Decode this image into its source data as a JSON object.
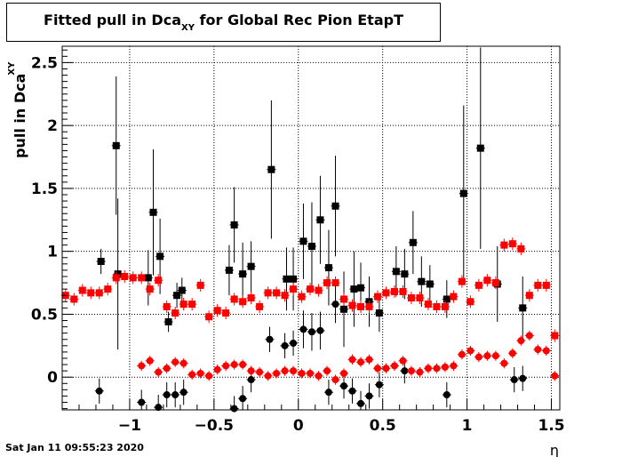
{
  "title": {
    "main": "Fitted pull in Dca",
    "sub": "XY",
    "rest": " for Global Rec Pion EtapT"
  },
  "footer": {
    "timestamp": "Sat Jan 11 09:55:23 2020"
  },
  "chart_data": {
    "type": "scatter",
    "title": "Fitted pull in Dca_XY for Global Rec Pion EtapT",
    "xlabel": "η",
    "ylabel_main": "pull in Dca",
    "ylabel_sub": "XY",
    "xlim": [
      -1.4,
      1.55
    ],
    "ylim": [
      -0.26,
      2.63
    ],
    "x_ticks": [
      -1,
      -0.5,
      0,
      0.5,
      1,
      1.5
    ],
    "x_tick_labels": [
      "−1",
      "−0.5",
      "0",
      "0.5",
      "1",
      "1.5"
    ],
    "y_ticks": [
      0,
      0.5,
      1,
      1.5,
      2,
      2.5
    ],
    "y_tick_labels": [
      "0",
      "0.5",
      "1",
      "1.5",
      "2",
      "2.5"
    ],
    "grid": true,
    "colors": {
      "black": "#000000",
      "red": "#ff0000"
    },
    "series": [
      {
        "marker": "square",
        "color": "#000000",
        "points": [
          [
            -1.17,
            0.92,
            0.1
          ],
          [
            -1.08,
            1.84,
            0.55
          ],
          [
            -1.07,
            0.82,
            0.6
          ],
          [
            -0.89,
            0.79,
            0.22
          ],
          [
            -0.86,
            1.31,
            0.5
          ],
          [
            -0.82,
            0.96,
            0.3
          ],
          [
            -0.77,
            0.44,
            0.08
          ],
          [
            -0.72,
            0.65,
            0.1
          ],
          [
            -0.69,
            0.69,
            0.1
          ],
          [
            -0.41,
            0.85,
            0.2
          ],
          [
            -0.38,
            1.21,
            0.3
          ],
          [
            -0.33,
            0.82,
            0.25
          ],
          [
            -0.28,
            0.88,
            0.2
          ],
          [
            -0.16,
            1.65,
            0.55
          ],
          [
            -0.07,
            0.78,
            0.25
          ],
          [
            -0.03,
            0.78,
            0.25
          ],
          [
            0.03,
            1.08,
            0.3
          ],
          [
            0.08,
            1.04,
            0.35
          ],
          [
            0.13,
            1.25,
            0.35
          ],
          [
            0.18,
            0.87,
            0.3
          ],
          [
            0.22,
            1.36,
            0.4
          ],
          [
            0.27,
            0.54,
            0.3
          ],
          [
            0.33,
            0.7,
            0.3
          ],
          [
            0.37,
            0.71,
            0.2
          ],
          [
            0.42,
            0.6,
            0.2
          ],
          [
            0.48,
            0.51,
            0.15
          ],
          [
            0.58,
            0.84,
            0.2
          ],
          [
            0.63,
            0.82,
            0.2
          ],
          [
            0.68,
            1.07,
            0.25
          ],
          [
            0.73,
            0.76,
            0.2
          ],
          [
            0.78,
            0.74,
            0.15
          ],
          [
            0.88,
            0.62,
            0.15
          ],
          [
            0.98,
            1.46,
            0.7
          ],
          [
            1.08,
            1.82,
            0.8
          ],
          [
            1.18,
            0.74,
            0.3
          ],
          [
            1.33,
            0.55,
            0.25
          ]
        ]
      },
      {
        "marker": "square",
        "color": "#ff0000",
        "points": [
          [
            -1.38,
            0.65,
            0.05
          ],
          [
            -1.33,
            0.62,
            0.05
          ],
          [
            -1.28,
            0.69,
            0.05
          ],
          [
            -1.23,
            0.67,
            0.05
          ],
          [
            -1.18,
            0.67,
            0.05
          ],
          [
            -1.13,
            0.7,
            0.05
          ],
          [
            -1.08,
            0.79,
            0.05
          ],
          [
            -1.03,
            0.8,
            0.05
          ],
          [
            -0.98,
            0.79,
            0.05
          ],
          [
            -0.93,
            0.79,
            0.05
          ],
          [
            -0.88,
            0.7,
            0.05
          ],
          [
            -0.83,
            0.77,
            0.05
          ],
          [
            -0.78,
            0.56,
            0.05
          ],
          [
            -0.73,
            0.51,
            0.05
          ],
          [
            -0.68,
            0.58,
            0.05
          ],
          [
            -0.63,
            0.58,
            0.05
          ],
          [
            -0.58,
            0.73,
            0.05
          ],
          [
            -0.53,
            0.48,
            0.05
          ],
          [
            -0.48,
            0.53,
            0.05
          ],
          [
            -0.43,
            0.51,
            0.05
          ],
          [
            -0.38,
            0.62,
            0.05
          ],
          [
            -0.33,
            0.6,
            0.05
          ],
          [
            -0.28,
            0.63,
            0.05
          ],
          [
            -0.23,
            0.56,
            0.05
          ],
          [
            -0.18,
            0.67,
            0.05
          ],
          [
            -0.13,
            0.67,
            0.05
          ],
          [
            -0.08,
            0.65,
            0.05
          ],
          [
            -0.03,
            0.7,
            0.05
          ],
          [
            0.02,
            0.64,
            0.05
          ],
          [
            0.07,
            0.7,
            0.05
          ],
          [
            0.12,
            0.69,
            0.05
          ],
          [
            0.17,
            0.75,
            0.05
          ],
          [
            0.22,
            0.75,
            0.05
          ],
          [
            0.27,
            0.62,
            0.05
          ],
          [
            0.32,
            0.57,
            0.05
          ],
          [
            0.37,
            0.56,
            0.05
          ],
          [
            0.42,
            0.56,
            0.05
          ],
          [
            0.47,
            0.64,
            0.05
          ],
          [
            0.52,
            0.67,
            0.05
          ],
          [
            0.57,
            0.68,
            0.05
          ],
          [
            0.62,
            0.68,
            0.05
          ],
          [
            0.67,
            0.63,
            0.05
          ],
          [
            0.72,
            0.63,
            0.05
          ],
          [
            0.77,
            0.58,
            0.05
          ],
          [
            0.82,
            0.56,
            0.05
          ],
          [
            0.87,
            0.56,
            0.05
          ],
          [
            0.92,
            0.64,
            0.05
          ],
          [
            0.97,
            0.76,
            0.05
          ],
          [
            1.02,
            0.6,
            0.05
          ],
          [
            1.07,
            0.73,
            0.05
          ],
          [
            1.12,
            0.77,
            0.05
          ],
          [
            1.17,
            0.75,
            0.05
          ],
          [
            1.22,
            1.05,
            0.05
          ],
          [
            1.27,
            1.06,
            0.05
          ],
          [
            1.32,
            1.02,
            0.05
          ],
          [
            1.37,
            0.65,
            0.05
          ],
          [
            1.42,
            0.73,
            0.05
          ],
          [
            1.47,
            0.73,
            0.05
          ],
          [
            1.52,
            0.33,
            0.05
          ]
        ]
      },
      {
        "marker": "circle",
        "color": "#000000",
        "points": [
          [
            -1.18,
            -0.11,
            0.1
          ],
          [
            -0.93,
            -0.2,
            0.1
          ],
          [
            -0.83,
            -0.24,
            0.1
          ],
          [
            -0.78,
            -0.14,
            0.1
          ],
          [
            -0.73,
            -0.14,
            0.1
          ],
          [
            -0.68,
            -0.12,
            0.1
          ],
          [
            -0.38,
            -0.25,
            0.1
          ],
          [
            -0.33,
            -0.17,
            0.1
          ],
          [
            -0.28,
            -0.02,
            0.1
          ],
          [
            -0.17,
            0.3,
            0.1
          ],
          [
            -0.08,
            0.25,
            0.1
          ],
          [
            -0.03,
            0.27,
            0.1
          ],
          [
            0.03,
            0.38,
            0.15
          ],
          [
            0.08,
            0.36,
            0.15
          ],
          [
            0.13,
            0.37,
            0.15
          ],
          [
            0.18,
            -0.12,
            0.1
          ],
          [
            0.22,
            0.58,
            0.15
          ],
          [
            0.27,
            -0.07,
            0.1
          ],
          [
            0.32,
            -0.11,
            0.1
          ],
          [
            0.37,
            -0.21,
            0.1
          ],
          [
            0.42,
            -0.15,
            0.1
          ],
          [
            0.48,
            -0.06,
            0.1
          ],
          [
            0.63,
            0.05,
            0.1
          ],
          [
            0.88,
            -0.14,
            0.1
          ],
          [
            1.28,
            -0.02,
            0.1
          ],
          [
            1.33,
            -0.01,
            0.1
          ]
        ]
      },
      {
        "marker": "circle",
        "color": "#ff0000",
        "points": [
          [
            -0.93,
            0.09,
            0.04
          ],
          [
            -0.88,
            0.13,
            0.04
          ],
          [
            -0.83,
            0.04,
            0.04
          ],
          [
            -0.78,
            0.07,
            0.04
          ],
          [
            -0.73,
            0.12,
            0.04
          ],
          [
            -0.68,
            0.11,
            0.04
          ],
          [
            -0.63,
            0.02,
            0.04
          ],
          [
            -0.58,
            0.03,
            0.04
          ],
          [
            -0.53,
            0.01,
            0.04
          ],
          [
            -0.48,
            0.06,
            0.04
          ],
          [
            -0.43,
            0.09,
            0.04
          ],
          [
            -0.38,
            0.1,
            0.04
          ],
          [
            -0.33,
            0.1,
            0.04
          ],
          [
            -0.28,
            0.05,
            0.04
          ],
          [
            -0.23,
            0.04,
            0.04
          ],
          [
            -0.18,
            0.01,
            0.04
          ],
          [
            -0.13,
            0.03,
            0.04
          ],
          [
            -0.08,
            0.05,
            0.04
          ],
          [
            -0.03,
            0.05,
            0.04
          ],
          [
            0.02,
            0.03,
            0.04
          ],
          [
            0.07,
            0.03,
            0.04
          ],
          [
            0.12,
            0.01,
            0.04
          ],
          [
            0.17,
            0.05,
            0.04
          ],
          [
            0.22,
            -0.02,
            0.04
          ],
          [
            0.27,
            0.03,
            0.04
          ],
          [
            0.32,
            0.14,
            0.04
          ],
          [
            0.37,
            0.12,
            0.04
          ],
          [
            0.42,
            0.14,
            0.04
          ],
          [
            0.47,
            0.07,
            0.04
          ],
          [
            0.52,
            0.07,
            0.04
          ],
          [
            0.57,
            0.09,
            0.04
          ],
          [
            0.62,
            0.13,
            0.04
          ],
          [
            0.67,
            0.05,
            0.04
          ],
          [
            0.72,
            0.04,
            0.04
          ],
          [
            0.77,
            0.07,
            0.04
          ],
          [
            0.82,
            0.07,
            0.04
          ],
          [
            0.87,
            0.08,
            0.04
          ],
          [
            0.92,
            0.09,
            0.04
          ],
          [
            0.97,
            0.18,
            0.04
          ],
          [
            1.02,
            0.21,
            0.04
          ],
          [
            1.07,
            0.16,
            0.04
          ],
          [
            1.12,
            0.17,
            0.04
          ],
          [
            1.17,
            0.17,
            0.04
          ],
          [
            1.22,
            0.11,
            0.04
          ],
          [
            1.27,
            0.19,
            0.04
          ],
          [
            1.32,
            0.29,
            0.04
          ],
          [
            1.37,
            0.33,
            0.04
          ],
          [
            1.42,
            0.22,
            0.04
          ],
          [
            1.47,
            0.21,
            0.04
          ],
          [
            1.52,
            0.01,
            0.04
          ]
        ]
      }
    ]
  }
}
